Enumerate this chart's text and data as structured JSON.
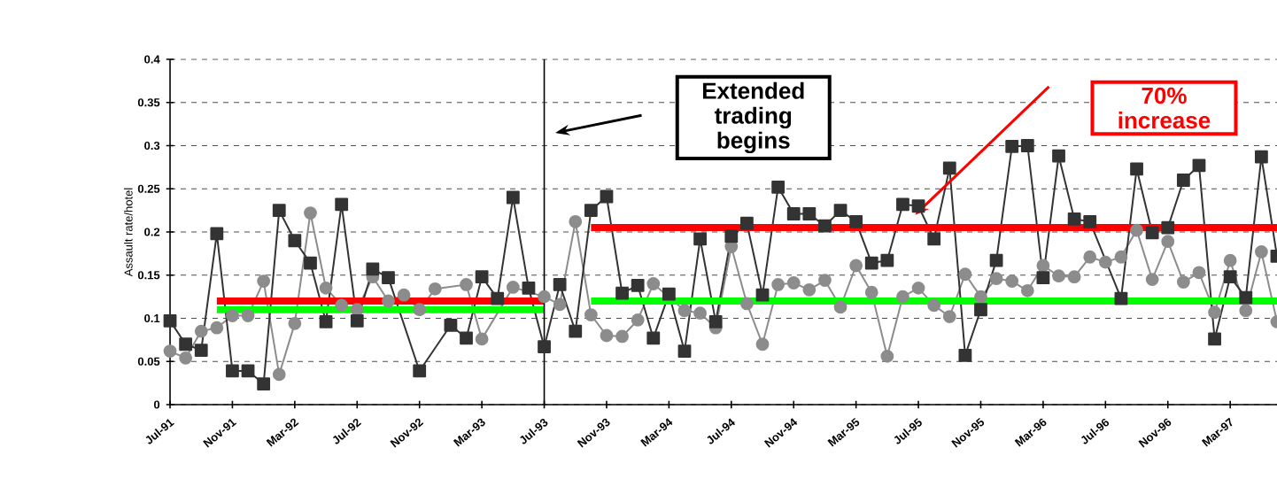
{
  "chart_data": {
    "type": "line",
    "ylabel": "Assault rate/hotel",
    "xlim": [
      "1991-07",
      "1997-06"
    ],
    "ylim": [
      0,
      0.4
    ],
    "xticks": [
      {
        "value": "1991-07",
        "label": "Jul-91"
      },
      {
        "value": "1991-11",
        "label": "Nov-91"
      },
      {
        "value": "1992-03",
        "label": "Mar-92"
      },
      {
        "value": "1992-07",
        "label": "Jul-92"
      },
      {
        "value": "1992-11",
        "label": "Nov-92"
      },
      {
        "value": "1993-03",
        "label": "Mar-93"
      },
      {
        "value": "1993-07",
        "label": "Jul-93"
      },
      {
        "value": "1993-11",
        "label": "Nov-93"
      },
      {
        "value": "1994-03",
        "label": "Mar-94"
      },
      {
        "value": "1994-07",
        "label": "Jul-94"
      },
      {
        "value": "1994-11",
        "label": "Nov-94"
      },
      {
        "value": "1995-03",
        "label": "Mar-95"
      },
      {
        "value": "1995-07",
        "label": "Jul-95"
      },
      {
        "value": "1995-11",
        "label": "Nov-95"
      },
      {
        "value": "1996-03",
        "label": "Mar-96"
      },
      {
        "value": "1996-07",
        "label": "Jul-96"
      },
      {
        "value": "1996-11",
        "label": "Nov-96"
      },
      {
        "value": "1997-03",
        "label": "Mar-97"
      }
    ],
    "yticks": [
      0,
      0.05,
      0.1,
      0.15,
      0.2,
      0.25,
      0.3,
      0.35,
      0.4
    ],
    "grid": "y",
    "x": [
      "1991-07",
      "1991-08",
      "1991-09",
      "1991-10",
      "1991-11",
      "1991-12",
      "1992-01",
      "1992-02",
      "1992-03",
      "1992-04",
      "1992-05",
      "1992-06",
      "1992-07",
      "1992-08",
      "1992-09",
      "1992-10",
      "1992-11",
      "1992-12",
      "1993-01",
      "1993-02",
      "1993-03",
      "1993-04",
      "1993-05",
      "1993-06",
      "1993-07",
      "1993-08",
      "1993-09",
      "1993-10",
      "1993-11",
      "1993-12",
      "1994-01",
      "1994-02",
      "1994-03",
      "1994-04",
      "1994-05",
      "1994-06",
      "1994-07",
      "1994-08",
      "1994-09",
      "1994-10",
      "1994-11",
      "1994-12",
      "1995-01",
      "1995-02",
      "1995-03",
      "1995-04",
      "1995-05",
      "1995-06",
      "1995-07",
      "1995-08",
      "1995-09",
      "1995-10",
      "1995-11",
      "1995-12",
      "1996-01",
      "1996-02",
      "1996-03",
      "1996-04",
      "1996-05",
      "1996-06",
      "1996-07",
      "1996-08",
      "1996-09",
      "1996-10",
      "1996-11",
      "1996-12",
      "1997-01",
      "1997-02",
      "1997-03",
      "1997-04",
      "1997-05",
      "1997-06"
    ],
    "series": [
      {
        "color": "#8c8c8c",
        "marker": "circle",
        "values": [
          0.062,
          0.054,
          0.085,
          0.089,
          0.103,
          0.103,
          0.143,
          0.035,
          0.094,
          0.222,
          0.135,
          0.115,
          0.11,
          0.148,
          0.12,
          0.127,
          0.11,
          0.134,
          null,
          0.139,
          0.076,
          null,
          0.136,
          null,
          0.125,
          0.116,
          0.212,
          0.104,
          0.08,
          0.079,
          0.098,
          0.14,
          null,
          0.109,
          0.106,
          0.089,
          0.183,
          0.117,
          0.07,
          0.139,
          0.141,
          0.133,
          0.144,
          0.113,
          0.161,
          0.13,
          0.056,
          0.125,
          0.135,
          0.115,
          0.102,
          0.151,
          0.125,
          0.146,
          0.143,
          0.132,
          0.161,
          0.149,
          0.148,
          0.171,
          0.165,
          0.171,
          0.202,
          0.145,
          0.189,
          0.142,
          0.153,
          0.107,
          0.167,
          0.109,
          0.177,
          0.096
        ]
      },
      {
        "color": "#333333",
        "marker": "square",
        "values": [
          0.097,
          0.07,
          0.063,
          0.198,
          0.039,
          0.039,
          0.024,
          0.225,
          0.19,
          0.164,
          0.096,
          0.232,
          0.097,
          0.157,
          0.147,
          null,
          0.039,
          null,
          0.092,
          0.077,
          0.148,
          0.123,
          0.24,
          0.135,
          0.067,
          0.139,
          0.085,
          0.225,
          0.241,
          0.129,
          0.138,
          0.077,
          0.128,
          0.062,
          0.192,
          0.096,
          0.195,
          0.21,
          0.127,
          0.252,
          0.221,
          0.221,
          0.207,
          0.225,
          0.212,
          0.164,
          0.167,
          0.232,
          0.23,
          0.192,
          0.274,
          0.057,
          0.11,
          0.167,
          0.299,
          0.3,
          0.147,
          0.288,
          0.215,
          0.212,
          null,
          0.123,
          0.273,
          0.199,
          0.205,
          0.26,
          0.277,
          0.076,
          0.148,
          0.124,
          0.287,
          0.172
        ]
      },
      {
        "color": "#ff0000",
        "marker": "none",
        "x": [
          "1991-10",
          "1993-07"
        ],
        "values": [
          0.12,
          0.12
        ]
      },
      {
        "color": "#00ff00",
        "marker": "none",
        "x": [
          "1991-10",
          "1993-07"
        ],
        "values": [
          0.11,
          0.11
        ]
      },
      {
        "color": "#ff0000",
        "marker": "none",
        "x": [
          "1993-10",
          "1997-06"
        ],
        "values": [
          0.205,
          0.205
        ]
      },
      {
        "color": "#00ff00",
        "marker": "none",
        "x": [
          "1993-10",
          "1997-06"
        ],
        "values": [
          0.12,
          0.12
        ]
      }
    ],
    "ref_lines": [
      {
        "axis": "x",
        "value": "1993-07",
        "color": "#000000"
      }
    ],
    "annotations": [
      "Extended trading begins",
      "70% increase"
    ]
  }
}
